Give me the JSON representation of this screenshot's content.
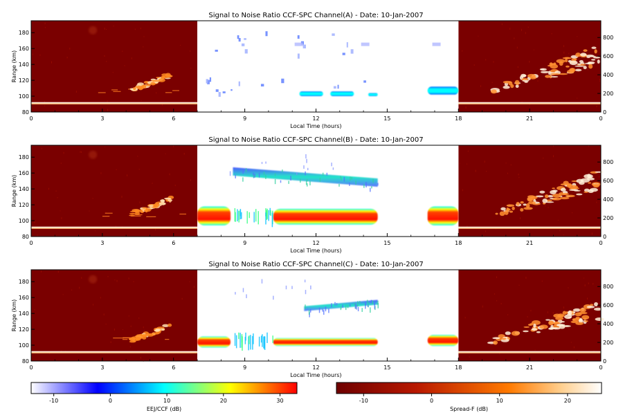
{
  "chart_data": [
    {
      "type": "heatmap",
      "title": "Signal to Noise Ratio CCF-SPC Channel(A) - Date: 10-Jan-2007",
      "xlabel": "Local Time (hours)",
      "ylabel": "Range (km)",
      "x_ticks": [
        "0",
        "3",
        "6",
        "9",
        "12",
        "15",
        "18",
        "21",
        "0"
      ],
      "y_ticks": [
        "80",
        "100",
        "120",
        "140",
        "160",
        "180"
      ],
      "y2_ticks": [
        "0",
        "200",
        "400",
        "600",
        "800"
      ],
      "xlim": [
        0,
        24
      ],
      "ylim": [
        80,
        195
      ],
      "y2lim": [
        0,
        980
      ],
      "panels": {
        "spread_f_left": {
          "x": [
            0,
            7
          ],
          "colorbar": "Spread-F (dB)"
        },
        "eej_ccf": {
          "x": [
            7,
            18
          ],
          "colorbar": "EEJ/CCF (dB)"
        },
        "spread_f_right": {
          "x": [
            18,
            24
          ],
          "colorbar": "Spread-F (dB)"
        }
      },
      "features": {
        "eej_blobs": [
          {
            "x": [
              11.3,
              12.3
            ],
            "y": 103,
            "dy": 3,
            "snr": 2
          },
          {
            "x": [
              12.6,
              13.6
            ],
            "y": 103,
            "dy": 3,
            "snr": 2
          },
          {
            "x": [
              14.2,
              14.6
            ],
            "y": 102,
            "dy": 2,
            "snr": 0
          },
          {
            "x": [
              16.7,
              18.0
            ],
            "y": 107,
            "dy": 5,
            "snr": 2
          }
        ],
        "spread_f_trail_left": {
          "x": [
            4.2,
            5.9
          ],
          "alt": [
            240,
            400
          ]
        },
        "spread_f_plume_right": {
          "x": [
            19.3,
            24.0
          ],
          "alt": [
            220,
            620
          ]
        }
      }
    },
    {
      "type": "heatmap",
      "title": "Signal to Noise Ratio CCF-SPC Channel(B) - Date: 10-Jan-2007",
      "xlabel": "Local Time (hours)",
      "ylabel": "Range (km)",
      "x_ticks": [
        "0",
        "3",
        "6",
        "9",
        "12",
        "15",
        "18",
        "21",
        "0"
      ],
      "y_ticks": [
        "80",
        "100",
        "120",
        "140",
        "160",
        "180"
      ],
      "y2_ticks": [
        "0",
        "200",
        "400",
        "600",
        "800"
      ],
      "xlim": [
        0,
        24
      ],
      "ylim": [
        80,
        195
      ],
      "y2lim": [
        0,
        980
      ],
      "features": {
        "eej_band": [
          {
            "x": [
              7.0,
              8.4
            ],
            "y": 106,
            "dy": 12,
            "snr": 28
          },
          {
            "x": [
              10.2,
              14.6
            ],
            "y": 105,
            "dy": 10,
            "snr": 30
          },
          {
            "x": [
              16.7,
              18.0
            ],
            "y": 106,
            "dy": 12,
            "snr": 30
          }
        ],
        "ccf_layer": {
          "x": [
            8.5,
            14.6
          ],
          "y_start": 162,
          "y_end": 148,
          "snr": 5
        },
        "spread_f_trail_left": {
          "x": [
            4.2,
            5.9
          ],
          "alt": [
            240,
            400
          ]
        },
        "spread_f_plume_right": {
          "x": [
            19.3,
            24.0
          ],
          "alt": [
            220,
            620
          ]
        }
      }
    },
    {
      "type": "heatmap",
      "title": "Signal to Noise Ratio CCF-SPC Channel(C) - Date: 10-Jan-2007",
      "xlabel": "Local Time (hours)",
      "ylabel": "Range (km)",
      "x_ticks": [
        "0",
        "3",
        "6",
        "9",
        "12",
        "15",
        "18",
        "21",
        "0"
      ],
      "y_ticks": [
        "80",
        "100",
        "120",
        "140",
        "160",
        "180"
      ],
      "y2_ticks": [
        "0",
        "200",
        "400",
        "600",
        "800"
      ],
      "xlim": [
        0,
        24
      ],
      "ylim": [
        80,
        195
      ],
      "y2lim": [
        0,
        980
      ],
      "features": {
        "eej_band": [
          {
            "x": [
              7.0,
              8.4
            ],
            "y": 104,
            "dy": 7,
            "snr": 20
          },
          {
            "x": [
              10.2,
              14.6
            ],
            "y": 104,
            "dy": 5,
            "snr": 25
          },
          {
            "x": [
              16.7,
              18.0
            ],
            "y": 106,
            "dy": 7,
            "snr": 22
          }
        ],
        "ccf_layer": {
          "x": [
            11.5,
            14.6
          ],
          "y_start": 146,
          "y_end": 154,
          "snr": 3
        },
        "spread_f_trail_left": {
          "x": [
            4.2,
            5.9
          ],
          "alt": [
            220,
            380
          ]
        },
        "spread_f_plume_right": {
          "x": [
            19.3,
            24.0
          ],
          "alt": [
            200,
            560
          ]
        }
      }
    }
  ],
  "colorbars": [
    {
      "label": "EEJ/CCF (dB)",
      "ticks": [
        "-10",
        "0",
        "10",
        "20",
        "30"
      ],
      "range": [
        -14,
        33
      ],
      "colors": [
        "#ffffff",
        "#0000ff",
        "#00ffff",
        "#ffff00",
        "#ff0000"
      ]
    },
    {
      "label": "Spread-F (dB)",
      "ticks": [
        "-10",
        "0",
        "10",
        "20"
      ],
      "range": [
        -14,
        25
      ],
      "colors": [
        "#6e0000",
        "#b81800",
        "#ff7a00",
        "#ffd090",
        "#ffffff"
      ]
    }
  ]
}
